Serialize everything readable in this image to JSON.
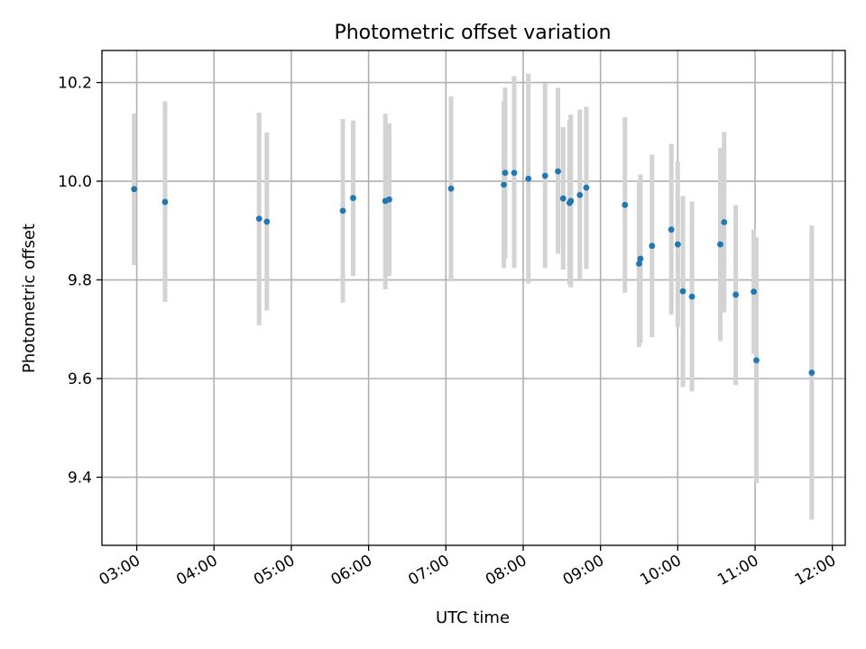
{
  "chart_data": {
    "type": "scatter",
    "title": "Photometric offset variation",
    "xlabel": "UTC time",
    "ylabel": "Photometric offset",
    "x_axis_type": "time",
    "xlim": [
      "02:33",
      "12:10"
    ],
    "ylim": [
      9.262,
      10.265
    ],
    "x_ticks": [
      "03:00",
      "04:00",
      "05:00",
      "06:00",
      "07:00",
      "08:00",
      "09:00",
      "10:00",
      "11:00",
      "12:00"
    ],
    "y_ticks": [
      9.4,
      9.6,
      9.8,
      10.0,
      10.2
    ],
    "y_tick_labels": [
      "9.4",
      "9.6",
      "9.8",
      "10.0",
      "10.2"
    ],
    "grid": true,
    "legend": "none",
    "marker_color": "#1f77b4",
    "errorbar_color": "#d3d3d3",
    "series": [
      {
        "points": [
          {
            "x": "02:58",
            "y": 9.984,
            "y_low": 9.83,
            "y_high": 10.137
          },
          {
            "x": "03:22",
            "y": 9.958,
            "y_low": 9.755,
            "y_high": 10.162
          },
          {
            "x": "04:35",
            "y": 9.924,
            "y_low": 9.708,
            "y_high": 10.139
          },
          {
            "x": "04:41",
            "y": 9.918,
            "y_low": 9.738,
            "y_high": 10.099
          },
          {
            "x": "05:40",
            "y": 9.94,
            "y_low": 9.754,
            "y_high": 10.126
          },
          {
            "x": "05:48",
            "y": 9.966,
            "y_low": 9.808,
            "y_high": 10.123
          },
          {
            "x": "06:13",
            "y": 9.96,
            "y_low": 9.781,
            "y_high": 10.137
          },
          {
            "x": "06:16",
            "y": 9.963,
            "y_low": 9.808,
            "y_high": 10.117
          },
          {
            "x": "07:04",
            "y": 9.985,
            "y_low": 9.797,
            "y_high": 10.172
          },
          {
            "x": "07:45",
            "y": 9.993,
            "y_low": 9.824,
            "y_high": 10.163
          },
          {
            "x": "07:46",
            "y": 10.017,
            "y_low": 9.843,
            "y_high": 10.19
          },
          {
            "x": "07:53",
            "y": 10.017,
            "y_low": 9.824,
            "y_high": 10.213
          },
          {
            "x": "08:04",
            "y": 10.005,
            "y_low": 9.793,
            "y_high": 10.218
          },
          {
            "x": "08:17",
            "y": 10.011,
            "y_low": 9.824,
            "y_high": 10.199
          },
          {
            "x": "08:27",
            "y": 10.02,
            "y_low": 9.853,
            "y_high": 10.189
          },
          {
            "x": "08:31",
            "y": 9.965,
            "y_low": 9.821,
            "y_high": 10.11
          },
          {
            "x": "08:36",
            "y": 9.956,
            "y_low": 9.79,
            "y_high": 10.125
          },
          {
            "x": "08:37",
            "y": 9.96,
            "y_low": 9.785,
            "y_high": 10.135
          },
          {
            "x": "08:44",
            "y": 9.972,
            "y_low": 9.8,
            "y_high": 10.145
          },
          {
            "x": "08:49",
            "y": 9.987,
            "y_low": 9.822,
            "y_high": 10.151
          },
          {
            "x": "09:19",
            "y": 9.952,
            "y_low": 9.774,
            "y_high": 10.13
          },
          {
            "x": "09:30",
            "y": 9.833,
            "y_low": 9.664,
            "y_high": 10.001
          },
          {
            "x": "09:31",
            "y": 9.843,
            "y_low": 9.672,
            "y_high": 10.014
          },
          {
            "x": "09:40",
            "y": 9.869,
            "y_low": 9.684,
            "y_high": 10.054
          },
          {
            "x": "09:55",
            "y": 9.902,
            "y_low": 9.73,
            "y_high": 10.076
          },
          {
            "x": "10:00",
            "y": 9.872,
            "y_low": 9.705,
            "y_high": 10.04
          },
          {
            "x": "10:04",
            "y": 9.777,
            "y_low": 9.583,
            "y_high": 9.97
          },
          {
            "x": "10:11",
            "y": 9.766,
            "y_low": 9.574,
            "y_high": 9.959
          },
          {
            "x": "10:33",
            "y": 9.872,
            "y_low": 9.676,
            "y_high": 10.068
          },
          {
            "x": "10:36",
            "y": 9.917,
            "y_low": 9.734,
            "y_high": 10.1
          },
          {
            "x": "10:45",
            "y": 9.77,
            "y_low": 9.587,
            "y_high": 9.952
          },
          {
            "x": "10:59",
            "y": 9.776,
            "y_low": 9.65,
            "y_high": 9.902
          },
          {
            "x": "11:01",
            "y": 9.637,
            "y_low": 9.388,
            "y_high": 9.886
          },
          {
            "x": "11:44",
            "y": 9.612,
            "y_low": 9.314,
            "y_high": 9.91
          }
        ]
      }
    ]
  }
}
